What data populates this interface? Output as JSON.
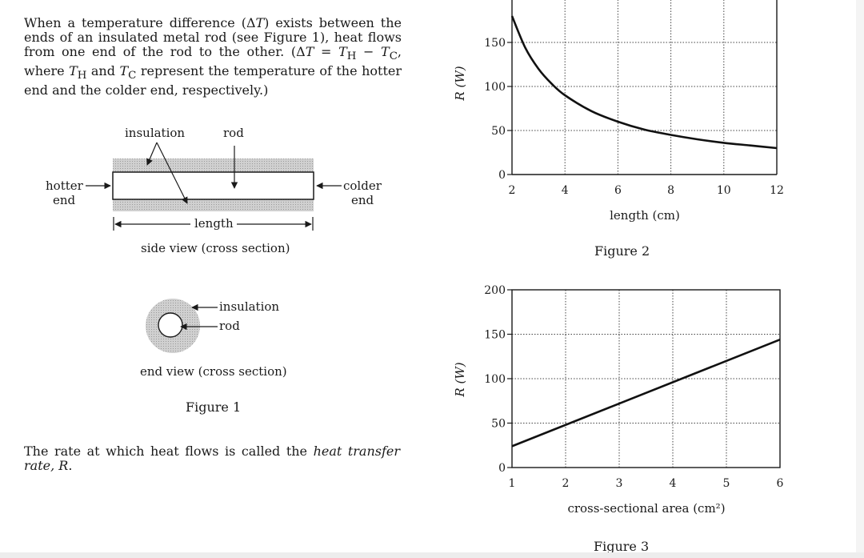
{
  "intro_html": "When a temperature difference (&Delta;<i>T</i>) exists between the ends of an insulated metal rod (see Figure 1), heat flows from one end of the rod to the other. (&Delta;<i>T</i> = <i>T</i><sub>H</sub> &minus; <i>T</i><sub>C</sub>, where <i>T</i><sub>H</sub> and <i>T</i><sub>C</sub> represent the temperature of the hotter end and the colder end, respectively.)",
  "closing_html": "The rate at which heat flows is called the <i>heat transfer rate, R</i>.",
  "figure1": {
    "labels": {
      "insulation": "insulation",
      "rod": "rod",
      "hotter_end_1": "hotter",
      "hotter_end_2": "end",
      "colder_end_1": "colder",
      "colder_end_2": "end",
      "length": "length",
      "side_view": "side view (cross section)",
      "end_insulation": "insulation",
      "end_rod": "rod",
      "end_view": "end view (cross section)"
    },
    "caption": "Figure 1"
  },
  "chart_data": [
    {
      "type": "line",
      "figure": "Figure 2",
      "title": "",
      "xlabel": "length (cm)",
      "ylabel": "R (W)",
      "xlim": [
        2,
        12
      ],
      "ylim": [
        0,
        200
      ],
      "xticks": [
        2,
        4,
        6,
        8,
        10,
        12
      ],
      "yticks": [
        0,
        50,
        100,
        150
      ],
      "grid": true,
      "series": [
        {
          "x": [
            2,
            2.5,
            3,
            3.5,
            4,
            5,
            6,
            7,
            8,
            9,
            10,
            11,
            12
          ],
          "y": [
            180,
            144,
            120,
            103,
            90,
            72,
            60,
            51,
            45,
            40,
            36,
            33,
            30
          ]
        }
      ]
    },
    {
      "type": "line",
      "figure": "Figure 3",
      "title": "",
      "xlabel": "cross-sectional area (cm²)",
      "ylabel": "R (W)",
      "xlim": [
        1,
        6
      ],
      "ylim": [
        0,
        200
      ],
      "xticks": [
        1,
        2,
        3,
        4,
        5,
        6
      ],
      "yticks": [
        0,
        50,
        100,
        150,
        200
      ],
      "grid": true,
      "series": [
        {
          "x": [
            1,
            6
          ],
          "y": [
            24,
            144
          ]
        }
      ]
    }
  ]
}
